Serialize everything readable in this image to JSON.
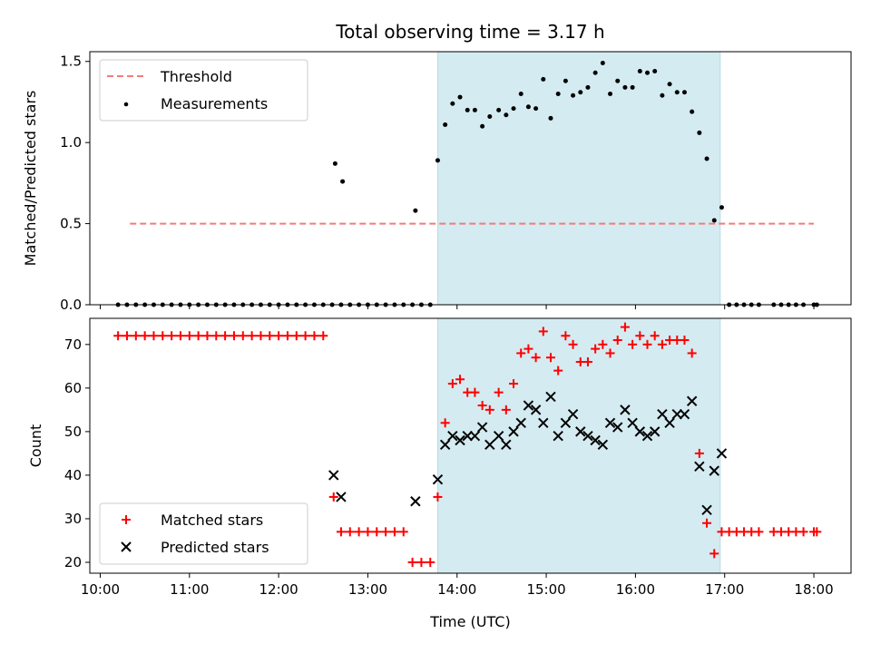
{
  "chart_data": [
    {
      "type": "scatter",
      "title": "Total observing time = 3.17 h",
      "xlabel": "",
      "ylabel": "Matched/Predicted stars",
      "xlim": [
        "09:53",
        "18:25"
      ],
      "ylim": [
        0,
        1.56
      ],
      "yticks": [
        {
          "value": 0.0,
          "label": "0.0"
        },
        {
          "value": 0.5,
          "label": "0.5"
        },
        {
          "value": 1.0,
          "label": "1.0"
        },
        {
          "value": 1.5,
          "label": "1.5"
        }
      ],
      "grid": false,
      "legend": "top-left",
      "shaded_span": {
        "start": "13:47",
        "end": "16:57",
        "color": "#d4ebf1"
      },
      "threshold": {
        "name": "Threshold",
        "value": 0.5,
        "x_start": "10:20",
        "x_end": "18:00",
        "color": "#f47b7b",
        "style": "dashed"
      },
      "series": [
        {
          "name": "Measurements",
          "marker": "dot",
          "color": "#000000",
          "points": [
            [
              "10:12",
              0
            ],
            [
              "10:18",
              0
            ],
            [
              "10:24",
              0
            ],
            [
              "10:30",
              0
            ],
            [
              "10:36",
              0
            ],
            [
              "10:42",
              0
            ],
            [
              "10:48",
              0
            ],
            [
              "10:54",
              0
            ],
            [
              "11:00",
              0
            ],
            [
              "11:06",
              0
            ],
            [
              "11:12",
              0
            ],
            [
              "11:18",
              0
            ],
            [
              "11:24",
              0
            ],
            [
              "11:30",
              0
            ],
            [
              "11:36",
              0
            ],
            [
              "11:42",
              0
            ],
            [
              "11:48",
              0
            ],
            [
              "11:54",
              0
            ],
            [
              "12:00",
              0
            ],
            [
              "12:06",
              0
            ],
            [
              "12:12",
              0
            ],
            [
              "12:18",
              0
            ],
            [
              "12:24",
              0
            ],
            [
              "12:30",
              0
            ],
            [
              "12:36",
              0
            ],
            [
              "12:42",
              0
            ],
            [
              "12:48",
              0
            ],
            [
              "12:54",
              0
            ],
            [
              "13:00",
              0
            ],
            [
              "13:06",
              0
            ],
            [
              "13:12",
              0
            ],
            [
              "13:18",
              0
            ],
            [
              "13:24",
              0
            ],
            [
              "13:30",
              0
            ],
            [
              "13:36",
              0
            ],
            [
              "13:42",
              0
            ],
            [
              "12:38",
              0.87
            ],
            [
              "12:43",
              0.76
            ],
            [
              "13:32",
              0.58
            ],
            [
              "13:47",
              0.89
            ],
            [
              "13:52",
              1.11
            ],
            [
              "13:57",
              1.24
            ],
            [
              "14:02",
              1.28
            ],
            [
              "14:07",
              1.2
            ],
            [
              "14:12",
              1.2
            ],
            [
              "14:17",
              1.1
            ],
            [
              "14:22",
              1.16
            ],
            [
              "14:28",
              1.2
            ],
            [
              "14:33",
              1.17
            ],
            [
              "14:38",
              1.21
            ],
            [
              "14:43",
              1.3
            ],
            [
              "14:48",
              1.22
            ],
            [
              "14:53",
              1.21
            ],
            [
              "14:58",
              1.39
            ],
            [
              "15:03",
              1.15
            ],
            [
              "15:08",
              1.3
            ],
            [
              "15:13",
              1.38
            ],
            [
              "15:18",
              1.29
            ],
            [
              "15:23",
              1.31
            ],
            [
              "15:28",
              1.34
            ],
            [
              "15:33",
              1.43
            ],
            [
              "15:38",
              1.49
            ],
            [
              "15:43",
              1.3
            ],
            [
              "15:48",
              1.38
            ],
            [
              "15:53",
              1.34
            ],
            [
              "15:58",
              1.34
            ],
            [
              "16:03",
              1.44
            ],
            [
              "16:08",
              1.43
            ],
            [
              "16:13",
              1.44
            ],
            [
              "16:18",
              1.29
            ],
            [
              "16:23",
              1.36
            ],
            [
              "16:28",
              1.31
            ],
            [
              "16:33",
              1.31
            ],
            [
              "16:38",
              1.19
            ],
            [
              "16:43",
              1.06
            ],
            [
              "16:48",
              0.9
            ],
            [
              "16:53",
              0.52
            ],
            [
              "16:58",
              0.6
            ],
            [
              "17:03",
              0
            ],
            [
              "17:08",
              0
            ],
            [
              "17:13",
              0
            ],
            [
              "17:18",
              0
            ],
            [
              "17:23",
              0
            ],
            [
              "17:33",
              0
            ],
            [
              "17:38",
              0
            ],
            [
              "17:43",
              0
            ],
            [
              "17:48",
              0
            ],
            [
              "17:53",
              0
            ],
            [
              "18:00",
              0
            ],
            [
              "18:02",
              0
            ]
          ]
        }
      ]
    },
    {
      "type": "scatter",
      "title": "",
      "xlabel": "Time (UTC)",
      "ylabel": "Count",
      "xlim": [
        "09:53",
        "18:25"
      ],
      "ylim": [
        17.5,
        76
      ],
      "xticks": [
        {
          "value": "10:00",
          "label": "10:00"
        },
        {
          "value": "11:00",
          "label": "11:00"
        },
        {
          "value": "12:00",
          "label": "12:00"
        },
        {
          "value": "13:00",
          "label": "13:00"
        },
        {
          "value": "14:00",
          "label": "14:00"
        },
        {
          "value": "15:00",
          "label": "15:00"
        },
        {
          "value": "16:00",
          "label": "16:00"
        },
        {
          "value": "17:00",
          "label": "17:00"
        },
        {
          "value": "18:00",
          "label": "18:00"
        }
      ],
      "yticks": [
        {
          "value": 20,
          "label": "20"
        },
        {
          "value": 30,
          "label": "30"
        },
        {
          "value": 40,
          "label": "40"
        },
        {
          "value": 50,
          "label": "50"
        },
        {
          "value": 60,
          "label": "60"
        },
        {
          "value": 70,
          "label": "70"
        }
      ],
      "grid": false,
      "legend": "bottom-left",
      "shaded_span": {
        "start": "13:47",
        "end": "16:57",
        "color": "#d4ebf1"
      },
      "series": [
        {
          "name": "Matched stars",
          "marker": "plus",
          "color": "#ff0000",
          "points": [
            [
              "10:12",
              72
            ],
            [
              "10:18",
              72
            ],
            [
              "10:24",
              72
            ],
            [
              "10:30",
              72
            ],
            [
              "10:36",
              72
            ],
            [
              "10:42",
              72
            ],
            [
              "10:48",
              72
            ],
            [
              "10:54",
              72
            ],
            [
              "11:00",
              72
            ],
            [
              "11:06",
              72
            ],
            [
              "11:12",
              72
            ],
            [
              "11:18",
              72
            ],
            [
              "11:24",
              72
            ],
            [
              "11:30",
              72
            ],
            [
              "11:36",
              72
            ],
            [
              "11:42",
              72
            ],
            [
              "11:48",
              72
            ],
            [
              "11:54",
              72
            ],
            [
              "12:00",
              72
            ],
            [
              "12:06",
              72
            ],
            [
              "12:12",
              72
            ],
            [
              "12:18",
              72
            ],
            [
              "12:24",
              72
            ],
            [
              "12:30",
              72
            ],
            [
              "12:37",
              35
            ],
            [
              "12:42",
              27
            ],
            [
              "12:48",
              27
            ],
            [
              "12:54",
              27
            ],
            [
              "13:00",
              27
            ],
            [
              "13:06",
              27
            ],
            [
              "13:12",
              27
            ],
            [
              "13:18",
              27
            ],
            [
              "13:24",
              27
            ],
            [
              "13:30",
              20
            ],
            [
              "13:36",
              20
            ],
            [
              "13:42",
              20
            ],
            [
              "13:47",
              35
            ],
            [
              "13:52",
              52
            ],
            [
              "13:57",
              61
            ],
            [
              "14:02",
              62
            ],
            [
              "14:07",
              59
            ],
            [
              "14:12",
              59
            ],
            [
              "14:17",
              56
            ],
            [
              "14:22",
              55
            ],
            [
              "14:28",
              59
            ],
            [
              "14:33",
              55
            ],
            [
              "14:38",
              61
            ],
            [
              "14:43",
              68
            ],
            [
              "14:48",
              69
            ],
            [
              "14:53",
              67
            ],
            [
              "14:58",
              73
            ],
            [
              "15:03",
              67
            ],
            [
              "15:08",
              64
            ],
            [
              "15:13",
              72
            ],
            [
              "15:18",
              70
            ],
            [
              "15:23",
              66
            ],
            [
              "15:28",
              66
            ],
            [
              "15:33",
              69
            ],
            [
              "15:38",
              70
            ],
            [
              "15:43",
              68
            ],
            [
              "15:48",
              71
            ],
            [
              "15:53",
              74
            ],
            [
              "15:58",
              70
            ],
            [
              "16:03",
              72
            ],
            [
              "16:08",
              70
            ],
            [
              "16:13",
              72
            ],
            [
              "16:18",
              70
            ],
            [
              "16:23",
              71
            ],
            [
              "16:28",
              71
            ],
            [
              "16:33",
              71
            ],
            [
              "16:38",
              68
            ],
            [
              "16:43",
              45
            ],
            [
              "16:48",
              29
            ],
            [
              "16:53",
              22
            ],
            [
              "16:58",
              27
            ],
            [
              "17:03",
              27
            ],
            [
              "17:08",
              27
            ],
            [
              "17:13",
              27
            ],
            [
              "17:18",
              27
            ],
            [
              "17:23",
              27
            ],
            [
              "17:33",
              27
            ],
            [
              "17:38",
              27
            ],
            [
              "17:43",
              27
            ],
            [
              "17:48",
              27
            ],
            [
              "17:53",
              27
            ],
            [
              "18:00",
              27
            ],
            [
              "18:02",
              27
            ]
          ]
        },
        {
          "name": "Predicted stars",
          "marker": "x",
          "color": "#000000",
          "points": [
            [
              "12:37",
              40
            ],
            [
              "12:42",
              35
            ],
            [
              "13:32",
              34
            ],
            [
              "13:47",
              39
            ],
            [
              "13:52",
              47
            ],
            [
              "13:57",
              49
            ],
            [
              "14:02",
              48
            ],
            [
              "14:07",
              49
            ],
            [
              "14:12",
              49
            ],
            [
              "14:17",
              51
            ],
            [
              "14:22",
              47
            ],
            [
              "14:28",
              49
            ],
            [
              "14:33",
              47
            ],
            [
              "14:38",
              50
            ],
            [
              "14:43",
              52
            ],
            [
              "14:48",
              56
            ],
            [
              "14:53",
              55
            ],
            [
              "14:58",
              52
            ],
            [
              "15:03",
              58
            ],
            [
              "15:08",
              49
            ],
            [
              "15:13",
              52
            ],
            [
              "15:18",
              54
            ],
            [
              "15:23",
              50
            ],
            [
              "15:28",
              49
            ],
            [
              "15:33",
              48
            ],
            [
              "15:38",
              47
            ],
            [
              "15:43",
              52
            ],
            [
              "15:48",
              51
            ],
            [
              "15:53",
              55
            ],
            [
              "15:58",
              52
            ],
            [
              "16:03",
              50
            ],
            [
              "16:08",
              49
            ],
            [
              "16:13",
              50
            ],
            [
              "16:18",
              54
            ],
            [
              "16:23",
              52
            ],
            [
              "16:28",
              54
            ],
            [
              "16:33",
              54
            ],
            [
              "16:38",
              57
            ],
            [
              "16:43",
              42
            ],
            [
              "16:48",
              32
            ],
            [
              "16:53",
              41
            ],
            [
              "16:58",
              45
            ]
          ]
        }
      ]
    }
  ]
}
